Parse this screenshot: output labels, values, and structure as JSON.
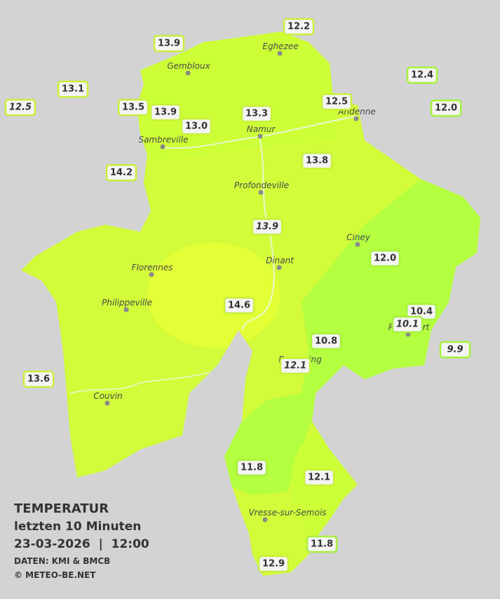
{
  "map": {
    "stations": [
      "12.2",
      "13.9",
      "13.1",
      "12.5",
      "13.5",
      "13.9",
      "13.0",
      "13.3",
      "12.5",
      "12.4",
      "12.0",
      "14.2",
      "13.8",
      "13.9",
      "12.0",
      "14.6",
      "10.4",
      "10.1",
      "10.8",
      "9.9",
      "12.1",
      "13.6",
      "11.8",
      "12.1",
      "11.8",
      "12.9"
    ],
    "cities": [
      "Eghezee",
      "Gembloux",
      "Andenne",
      "Namur",
      "Sambreville",
      "Profondeville",
      "Ciney",
      "Dinant",
      "Florennes",
      "Philippeville",
      "Rochefort",
      "Beauraing",
      "Couvin",
      "Vresse-sur-Semois"
    ]
  },
  "legend": {
    "title": "TEMPERATUR",
    "subtitle": "letzten 10 Minuten",
    "datetime": "23-03-2026  |  12:00",
    "source": "DATEN: KMI & BMCB",
    "copyright": "© METEO-BE.NET"
  }
}
